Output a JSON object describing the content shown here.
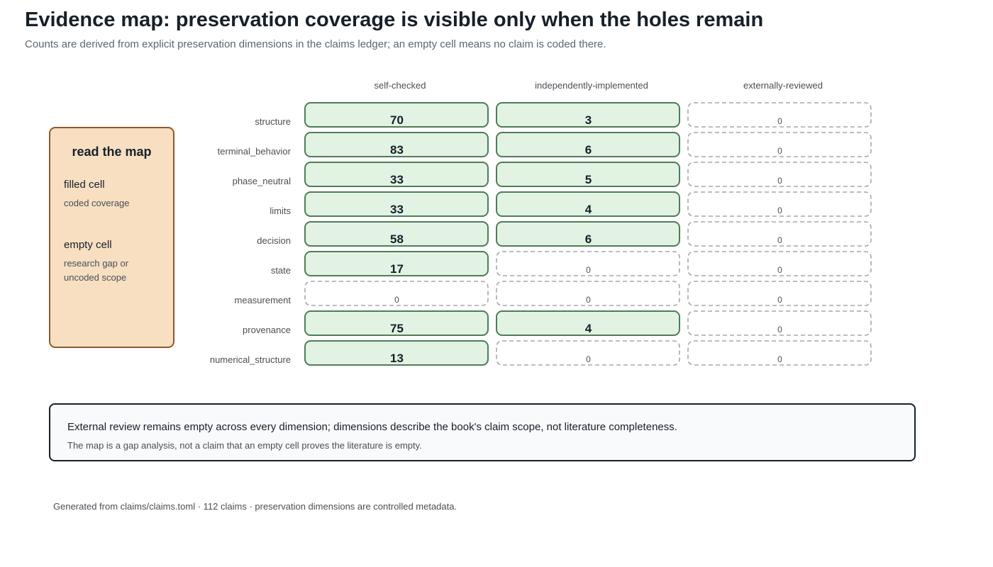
{
  "header": {
    "title": "Evidence map: preservation coverage is visible only when the holes remain",
    "subtitle": "Counts are derived from explicit preservation dimensions in the claims ledger; an empty cell means no claim is coded there."
  },
  "legend": {
    "title": "read the map",
    "filled_label": "filled cell",
    "filled_desc": "coded coverage",
    "empty_label": "empty cell",
    "empty_desc": "research gap or uncoded scope"
  },
  "chart_data": {
    "type": "heatmap",
    "columns": [
      "self-checked",
      "independently-implemented",
      "externally-reviewed"
    ],
    "rows": [
      "structure",
      "terminal_behavior",
      "phase_neutral",
      "limits",
      "decision",
      "state",
      "measurement",
      "provenance",
      "numerical_structure"
    ],
    "values": [
      [
        70,
        3,
        0
      ],
      [
        83,
        6,
        0
      ],
      [
        33,
        5,
        0
      ],
      [
        33,
        4,
        0
      ],
      [
        58,
        6,
        0
      ],
      [
        17,
        0,
        0
      ],
      [
        0,
        0,
        0
      ],
      [
        75,
        4,
        0
      ],
      [
        13,
        0,
        0
      ]
    ],
    "colors": {
      "filled_fill": "#e2f2e3",
      "filled_stroke": "#4e7d56",
      "empty_stroke": "#a4a8ad"
    }
  },
  "note": {
    "main": "External review remains empty across every dimension; dimensions describe the book's claim scope, not literature completeness.",
    "sub": "The map is a gap analysis, not a claim that an empty cell proves the literature is empty."
  },
  "footer": {
    "text": "Generated from claims/claims.toml · 112 claims · preservation dimensions are controlled metadata."
  }
}
